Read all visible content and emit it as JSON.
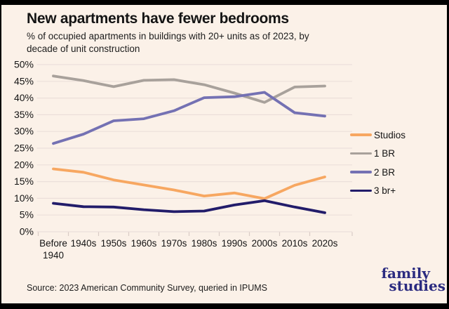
{
  "header": {
    "subtitle_lines": [
      "% of occupied apartments in buildings with 20+ units as of 2023, by",
      "decade of unit construction"
    ]
  },
  "footer": {
    "source": "Source: 2023 American Community Survey, queried in IPUMS",
    "logo_line1": "family",
    "logo_line2": "studies",
    "logo_color": "#2b2b80"
  },
  "colors": {
    "background": "#fbf1e8",
    "border": "#000000",
    "gridline": "#ebdfda",
    "tick": "#d9ccc6",
    "text": "#141414"
  },
  "chart_data": {
    "type": "line",
    "title": "New apartments have fewer bedrooms",
    "subtitle": "% of occupied apartments in buildings with 20+ units as of 2023, by decade of unit construction",
    "categories": [
      "Before 1940",
      "1940s",
      "1950s",
      "1960s",
      "1970s",
      "1980s",
      "1990s",
      "2000s",
      "2010s",
      "2020s"
    ],
    "series": [
      {
        "name": "Studios",
        "color": "#f7a761",
        "values": [
          18.8,
          17.8,
          15.5,
          14.0,
          12.5,
          10.7,
          11.6,
          9.9,
          13.9,
          16.4
        ]
      },
      {
        "name": "1 BR",
        "color": "#a8a19b",
        "values": [
          46.6,
          45.2,
          43.4,
          45.3,
          45.5,
          44.0,
          41.5,
          38.7,
          43.3,
          43.6
        ]
      },
      {
        "name": "2 BR",
        "color": "#7471b3",
        "values": [
          26.4,
          29.2,
          33.2,
          33.8,
          36.2,
          40.1,
          40.4,
          41.7,
          35.6,
          34.6
        ]
      },
      {
        "name": "3 br+",
        "color": "#221c6a",
        "values": [
          8.5,
          7.5,
          7.4,
          6.6,
          6.0,
          6.2,
          8.0,
          9.3,
          7.4,
          5.7
        ]
      }
    ],
    "ylim": [
      0,
      50
    ],
    "ytick_step": 5,
    "ytick_format": "percent",
    "grid": true,
    "legend_position": "right",
    "xlabel": "",
    "ylabel": ""
  }
}
